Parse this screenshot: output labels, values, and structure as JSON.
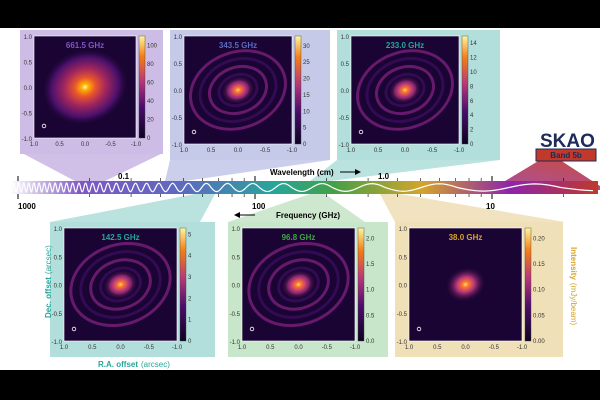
{
  "panels": [
    {
      "freq": "661.5 GHz",
      "cb_ticks": [
        "100",
        "80",
        "60",
        "40",
        "20",
        "0"
      ],
      "cb_vals": [
        100,
        80,
        60,
        40,
        20,
        0
      ],
      "cb_max": 110,
      "rings": false,
      "peak": 1.0,
      "accent": "#b39ddb",
      "bg": "#cdbde6",
      "label_color": "#7e57c2"
    },
    {
      "freq": "343.5 GHz",
      "cb_ticks": [
        "30",
        "25",
        "20",
        "15",
        "10",
        "5",
        "0"
      ],
      "cb_vals": [
        30,
        25,
        20,
        15,
        10,
        5,
        0
      ],
      "cb_max": 33,
      "rings": true,
      "peak": 0.9,
      "accent": "#9fa8da",
      "bg": "#c5cae9",
      "label_color": "#5c6bc0"
    },
    {
      "freq": "233.0 GHz",
      "cb_ticks": [
        "14",
        "12",
        "10",
        "8",
        "6",
        "4",
        "2",
        "0"
      ],
      "cb_vals": [
        14,
        12,
        10,
        8,
        6,
        4,
        2,
        0
      ],
      "cb_max": 15,
      "rings": true,
      "peak": 0.85,
      "accent": "#80cbc4",
      "bg": "#b2dfdb",
      "label_color": "#26a69a"
    },
    {
      "freq": "142.5 GHz",
      "cb_ticks": [
        "5",
        "4",
        "3",
        "2",
        "1",
        "0"
      ],
      "cb_vals": [
        5,
        4,
        3,
        2,
        1,
        0
      ],
      "cb_max": 5.3,
      "rings": true,
      "peak": 0.85,
      "accent": "#80cbc4",
      "bg": "#b2dfdb",
      "label_color": "#26a69a"
    },
    {
      "freq": "96.8 GHz",
      "cb_ticks": [
        "2.0",
        "1.5",
        "1.0",
        "0.5",
        "0.0"
      ],
      "cb_vals": [
        2.0,
        1.5,
        1.0,
        0.5,
        0.0
      ],
      "cb_max": 2.2,
      "rings": true,
      "peak": 0.8,
      "accent": "#a5d6a7",
      "bg": "#c8e6c9",
      "label_color": "#43a047"
    },
    {
      "freq": "38.0 GHz",
      "cb_ticks": [
        "0.20",
        "0.15",
        "0.10",
        "0.05",
        "0.00"
      ],
      "cb_vals": [
        0.2,
        0.15,
        0.1,
        0.05,
        0.0
      ],
      "cb_max": 0.22,
      "rings": false,
      "peak": 0.7,
      "accent": "#e6ce9b",
      "bg": "#efe0b8",
      "label_color": "#d4a52a"
    }
  ],
  "axis_ticks": {
    "y": [
      "1.0",
      "0.5",
      "0.0",
      "-0.5",
      "-1.0"
    ],
    "x": [
      "1.0",
      "0.5",
      "0.0",
      "-0.5",
      "-1.0"
    ]
  },
  "labels": {
    "dec": "Dec. offset",
    "dec_unit": "(arcsec)",
    "ra": "R.A. offset",
    "ra_unit": "(arcsec)",
    "intensity": "Intensity",
    "intensity_unit": "(mJy/beam)",
    "wavelength": "Wavelength (cm)",
    "frequency": "Frequency (GHz)",
    "wl_tick_1": "0.1",
    "wl_tick_2": "1.0",
    "freq_tick_1": "1000",
    "freq_tick_2": "100",
    "freq_tick_3": "10",
    "logo": "SKAO",
    "band": "Band 5b"
  },
  "colors": {
    "brand_red": "#c0392b",
    "brand_navy": "#1e2a5a",
    "spectrum": [
      "#ffffff",
      "#7e57c2",
      "#5c6bc0",
      "#26a69a",
      "#43a047",
      "#d4a52a",
      "#8e24aa",
      "#c0392b"
    ]
  }
}
